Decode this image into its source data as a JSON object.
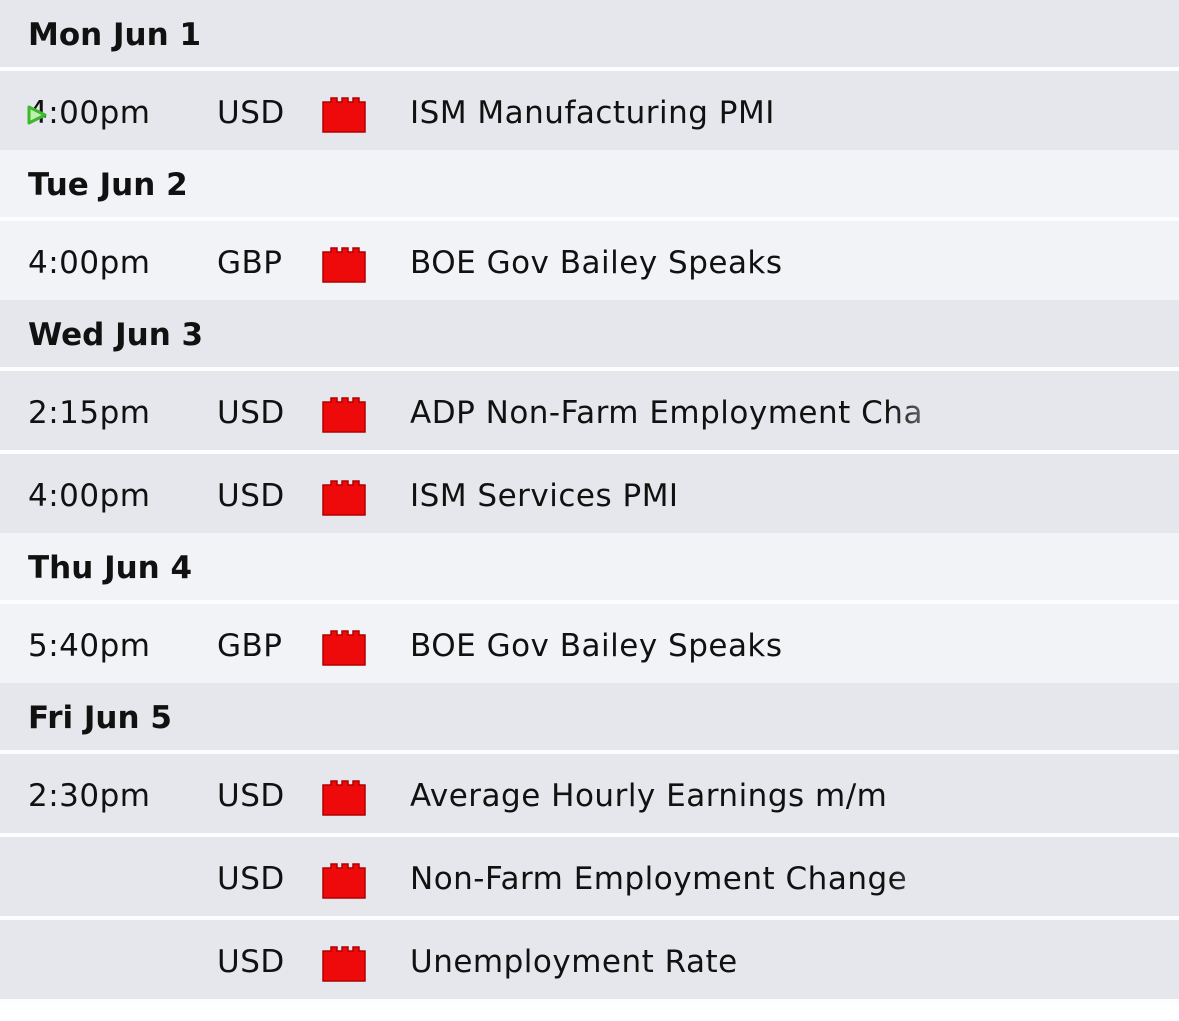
{
  "days": [
    {
      "date": "Mon Jun 1",
      "events": [
        {
          "time": "4:00pm",
          "currency": "USD",
          "title": "ISM Manufacturing PMI"
        }
      ]
    },
    {
      "date": "Tue Jun 2",
      "events": [
        {
          "time": "4:00pm",
          "currency": "GBP",
          "title": "BOE Gov Bailey Speaks"
        }
      ]
    },
    {
      "date": "Wed Jun 3",
      "events": [
        {
          "time": "2:15pm",
          "currency": "USD",
          "title": "ADP Non-Farm Employment Cha"
        },
        {
          "time": "4:00pm",
          "currency": "USD",
          "title": "ISM Services PMI"
        }
      ]
    },
    {
      "date": "Thu Jun 4",
      "events": [
        {
          "time": "5:40pm",
          "currency": "GBP",
          "title": "BOE Gov Bailey Speaks"
        }
      ]
    },
    {
      "date": "Fri Jun 5",
      "events": [
        {
          "time": "2:30pm",
          "currency": "USD",
          "title": "Average Hourly Earnings m/m"
        },
        {
          "currency": "USD",
          "title": "Non-Farm Employment Change"
        },
        {
          "currency": "USD",
          "title": "Unemployment Rate"
        }
      ]
    }
  ]
}
